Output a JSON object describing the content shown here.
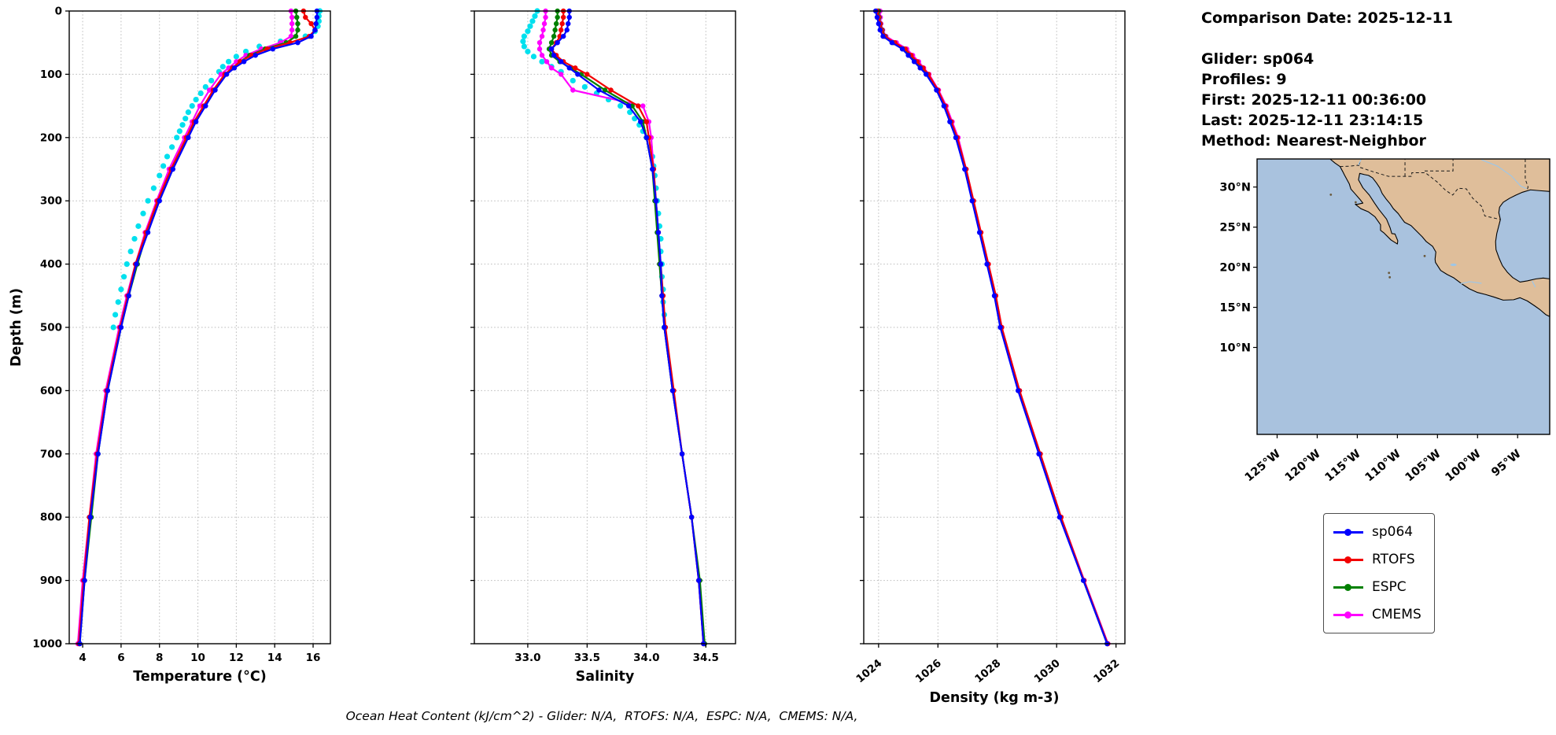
{
  "info": {
    "lines": [
      "Comparison Date: 2025-12-11",
      "Glider: sp064",
      "Profiles: 9",
      "First: 2025-12-11 00:36:00",
      "Last: 2025-12-11 23:14:15",
      "Method: Nearest-Neighbor"
    ]
  },
  "footer": {
    "text": "Ocean Heat Content (kJ/cm^2) - Glider: N/A,  RTOFS: N/A,  ESPC: N/A,  CMEMS: N/A,"
  },
  "legend": {
    "entries": [
      {
        "label": "sp064",
        "color": "#0000FF"
      },
      {
        "label": "RTOFS",
        "color": "#F20000"
      },
      {
        "label": "ESPC",
        "color": "#008000"
      },
      {
        "label": "CMEMS",
        "color": "#FF00FF"
      }
    ]
  },
  "map": {
    "lat_ticks": [
      "30°N",
      "25°N",
      "20°N",
      "15°N",
      "10°N"
    ],
    "lat_tick_values": [
      30,
      25,
      20,
      15,
      10
    ],
    "lon_ticks": [
      "125°W",
      "120°W",
      "115°W",
      "110°W",
      "105°W",
      "100°W",
      "95°W"
    ],
    "lon_tick_values": [
      -125,
      -120,
      -115,
      -110,
      -105,
      -100,
      -95
    ],
    "ocean_color": "#A9C2DE",
    "land_color": "#DFBE9A"
  },
  "chart_data": {
    "type": "line",
    "depth_axis": {
      "label": "Depth (m)",
      "lim": [
        0,
        1000
      ],
      "ticks": [
        0,
        100,
        200,
        300,
        400,
        500,
        600,
        700,
        800,
        900,
        1000
      ]
    },
    "charts": [
      {
        "id": "temperature",
        "xlabel": "Temperature (°C)",
        "xlim": [
          3.3,
          16.9
        ],
        "xticks": [
          4,
          6,
          8,
          10,
          12,
          14,
          16
        ],
        "xtick_labels": [
          "4",
          "6",
          "8",
          "10",
          "12",
          "14",
          "16"
        ],
        "rotate_xticks": false
      },
      {
        "id": "salinity",
        "xlabel": "Salinity",
        "xlim": [
          32.55,
          34.75
        ],
        "xticks": [
          33.0,
          33.5,
          34.0,
          34.5
        ],
        "xtick_labels": [
          "33.0",
          "33.5",
          "34.0",
          "34.5"
        ],
        "rotate_xticks": false
      },
      {
        "id": "density",
        "xlabel": "Density (kg m-3)",
        "xlim": [
          1023.5,
          1032.3
        ],
        "xticks": [
          1024,
          1026,
          1028,
          1030,
          1032
        ],
        "xtick_labels": [
          "1024",
          "1026",
          "1028",
          "1030",
          "1032"
        ],
        "rotate_xticks": true
      }
    ],
    "series": [
      {
        "name": "glider-obs",
        "color": "#00E0EE",
        "marker_only": true,
        "in_legend": false,
        "depths": [
          0,
          8,
          16,
          24,
          32,
          40,
          48,
          56,
          64,
          72,
          80,
          88,
          96,
          110,
          120,
          130,
          140,
          150,
          160,
          170,
          180,
          190,
          200,
          215,
          230,
          245,
          260,
          280,
          300,
          320,
          340,
          360,
          380,
          400,
          420,
          440,
          460,
          480,
          500
        ],
        "values": {
          "temperature": [
            16.35,
            16.3,
            16.3,
            16.25,
            16.1,
            15.6,
            14.3,
            13.2,
            12.5,
            12.0,
            11.6,
            11.3,
            11.1,
            10.7,
            10.4,
            10.15,
            9.9,
            9.7,
            9.5,
            9.35,
            9.2,
            9.05,
            8.9,
            8.65,
            8.4,
            8.2,
            8.0,
            7.7,
            7.4,
            7.15,
            6.9,
            6.7,
            6.5,
            6.3,
            6.15,
            6.0,
            5.85,
            5.7,
            5.6
          ],
          "salinity": [
            33.08,
            33.06,
            33.04,
            33.02,
            33.0,
            32.97,
            32.96,
            32.97,
            33.0,
            33.05,
            33.12,
            33.2,
            33.28,
            33.38,
            33.48,
            33.58,
            33.68,
            33.78,
            33.86,
            33.9,
            33.94,
            33.97,
            34.0,
            34.03,
            34.05,
            34.06,
            34.07,
            34.08,
            34.09,
            34.1,
            34.11,
            34.12,
            34.12,
            34.13,
            34.13,
            34.14,
            34.14,
            34.15,
            34.15
          ],
          "density": null
        }
      },
      {
        "name": "CMEMS",
        "color": "#FF00FF",
        "marker_only": false,
        "in_legend": true,
        "depths": [
          0,
          10,
          20,
          30,
          40,
          50,
          60,
          70,
          80,
          90,
          100,
          125,
          150,
          175,
          200,
          250,
          300,
          350,
          400,
          450,
          500,
          600,
          700,
          800,
          900,
          1000
        ],
        "values": {
          "temperature": [
            14.85,
            14.9,
            14.9,
            14.9,
            14.85,
            14.3,
            13.3,
            12.5,
            12.0,
            11.6,
            11.2,
            10.6,
            10.1,
            9.7,
            9.3,
            8.5,
            7.85,
            7.25,
            6.75,
            6.3,
            5.9,
            5.2,
            4.7,
            4.35,
            4.0,
            3.75
          ],
          "salinity": [
            33.15,
            33.15,
            33.14,
            33.13,
            33.12,
            33.1,
            33.1,
            33.12,
            33.16,
            33.2,
            33.28,
            33.38,
            33.97,
            34.02,
            34.04,
            34.06,
            34.08,
            34.1,
            34.11,
            34.13,
            34.15,
            34.22,
            34.3,
            34.38,
            34.44,
            34.48
          ],
          "density": [
            1024.05,
            1024.06,
            1024.08,
            1024.14,
            1024.25,
            1024.6,
            1024.95,
            1025.15,
            1025.35,
            1025.52,
            1025.7,
            1026.02,
            1026.28,
            1026.48,
            1026.68,
            1026.95,
            1027.2,
            1027.45,
            1027.7,
            1027.95,
            1028.15,
            1028.75,
            1029.45,
            1030.15,
            1030.93,
            1031.73
          ]
        }
      },
      {
        "name": "ESPC",
        "color": "#008000",
        "marker_only": false,
        "in_legend": true,
        "depths": [
          0,
          10,
          20,
          30,
          40,
          50,
          60,
          70,
          80,
          90,
          100,
          125,
          150,
          175,
          200,
          250,
          300,
          350,
          400,
          450,
          500,
          600,
          700,
          800,
          900,
          1000
        ],
        "values": {
          "temperature": [
            15.1,
            15.15,
            15.2,
            15.2,
            15.1,
            14.6,
            13.5,
            12.7,
            12.2,
            11.8,
            11.45,
            10.85,
            10.35,
            9.85,
            9.45,
            8.65,
            7.95,
            7.35,
            6.85,
            6.4,
            6.0,
            5.3,
            4.8,
            4.45,
            4.1,
            3.85
          ],
          "salinity": [
            33.25,
            33.25,
            33.24,
            33.23,
            33.22,
            33.2,
            33.18,
            33.2,
            33.27,
            33.36,
            33.45,
            33.65,
            33.88,
            33.97,
            34.0,
            34.05,
            34.07,
            34.09,
            34.11,
            34.13,
            34.15,
            34.22,
            34.3,
            34.38,
            34.45,
            34.49
          ],
          "density": [
            1024.0,
            1024.02,
            1024.06,
            1024.12,
            1024.22,
            1024.5,
            1024.85,
            1025.05,
            1025.25,
            1025.45,
            1025.65,
            1025.98,
            1026.22,
            1026.42,
            1026.62,
            1026.92,
            1027.18,
            1027.42,
            1027.68,
            1027.92,
            1028.12,
            1028.72,
            1029.42,
            1030.12,
            1030.9,
            1031.7
          ]
        }
      },
      {
        "name": "RTOFS",
        "color": "#F20000",
        "marker_only": false,
        "in_legend": true,
        "depths": [
          0,
          10,
          20,
          30,
          40,
          50,
          60,
          70,
          80,
          90,
          100,
          125,
          150,
          175,
          200,
          250,
          300,
          350,
          400,
          450,
          500,
          600,
          700,
          800,
          900,
          1000
        ],
        "values": {
          "temperature": [
            15.5,
            15.6,
            15.9,
            16.1,
            15.8,
            14.8,
            13.6,
            12.8,
            12.2,
            11.8,
            11.4,
            10.8,
            10.3,
            9.8,
            9.4,
            8.6,
            7.9,
            7.3,
            6.75,
            6.35,
            5.95,
            5.25,
            4.75,
            4.35,
            4.05,
            3.8
          ],
          "salinity": [
            33.3,
            33.3,
            33.29,
            33.28,
            33.27,
            33.24,
            33.2,
            33.24,
            33.3,
            33.4,
            33.5,
            33.7,
            33.93,
            34.0,
            34.02,
            34.06,
            34.08,
            34.1,
            34.12,
            34.14,
            34.16,
            34.23,
            34.3,
            34.38,
            34.44,
            34.48
          ],
          "density": [
            1023.95,
            1024.0,
            1024.05,
            1024.1,
            1024.2,
            1024.55,
            1024.9,
            1025.1,
            1025.3,
            1025.5,
            1025.68,
            1026.0,
            1026.25,
            1026.45,
            1026.65,
            1026.95,
            1027.2,
            1027.45,
            1027.7,
            1027.95,
            1028.15,
            1028.75,
            1029.45,
            1030.15,
            1030.92,
            1031.72
          ]
        }
      },
      {
        "name": "sp064",
        "color": "#0000FF",
        "marker_only": false,
        "in_legend": true,
        "depths": [
          0,
          10,
          20,
          30,
          40,
          50,
          60,
          70,
          80,
          90,
          100,
          125,
          150,
          175,
          200,
          250,
          300,
          350,
          400,
          450,
          500,
          600,
          700,
          800,
          900,
          1000
        ],
        "values": {
          "temperature": [
            16.2,
            16.2,
            16.15,
            16.1,
            15.9,
            15.2,
            13.9,
            13.0,
            12.4,
            11.9,
            11.5,
            10.9,
            10.4,
            9.9,
            9.5,
            8.7,
            8.0,
            7.4,
            6.8,
            6.4,
            6.0,
            5.3,
            4.8,
            4.4,
            4.1,
            3.85
          ],
          "salinity": [
            33.35,
            33.35,
            33.34,
            33.33,
            33.3,
            33.25,
            33.2,
            33.22,
            33.28,
            33.35,
            33.42,
            33.6,
            33.85,
            33.95,
            34.0,
            34.05,
            34.08,
            34.1,
            34.12,
            34.13,
            34.15,
            34.22,
            34.3,
            34.38,
            34.44,
            34.48
          ],
          "density": [
            1023.9,
            1023.95,
            1024.0,
            1024.05,
            1024.15,
            1024.45,
            1024.8,
            1025.0,
            1025.2,
            1025.4,
            1025.6,
            1025.95,
            1026.2,
            1026.4,
            1026.6,
            1026.9,
            1027.15,
            1027.4,
            1027.65,
            1027.9,
            1028.1,
            1028.7,
            1029.4,
            1030.1,
            1030.9,
            1031.7
          ]
        }
      }
    ]
  }
}
